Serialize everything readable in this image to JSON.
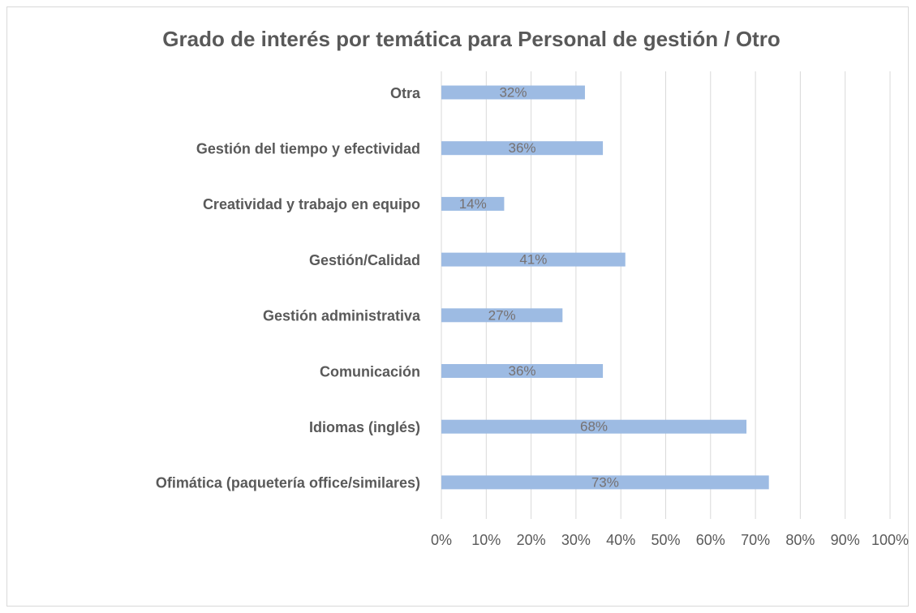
{
  "chart_data": {
    "type": "bar",
    "orientation": "horizontal",
    "title": "Grado de interés por temática para Personal de gestión / Otro",
    "categories": [
      "Otra",
      "Gestión del tiempo y efectividad",
      "Creatividad y trabajo en equipo",
      "Gestión/Calidad",
      "Gestión administrativa",
      "Comunicación",
      "Idiomas (inglés)",
      "Ofimática (paquetería office/similares)"
    ],
    "values": [
      32,
      36,
      14,
      41,
      27,
      36,
      68,
      73
    ],
    "value_labels": [
      "32%",
      "36%",
      "14%",
      "41%",
      "27%",
      "36%",
      "68%",
      "73%"
    ],
    "color": "#9dbbe3",
    "xlim": [
      0,
      100
    ],
    "xticks": [
      {
        "value": 0,
        "label": "0%"
      },
      {
        "value": 10,
        "label": "10%"
      },
      {
        "value": 20,
        "label": "20%"
      },
      {
        "value": 30,
        "label": "30%"
      },
      {
        "value": 40,
        "label": "40%"
      },
      {
        "value": 50,
        "label": "50%"
      },
      {
        "value": 60,
        "label": "60%"
      },
      {
        "value": 70,
        "label": "70%"
      },
      {
        "value": 80,
        "label": "80%"
      },
      {
        "value": 90,
        "label": "90%"
      },
      {
        "value": 100,
        "label": "100%"
      }
    ],
    "grid": true
  }
}
